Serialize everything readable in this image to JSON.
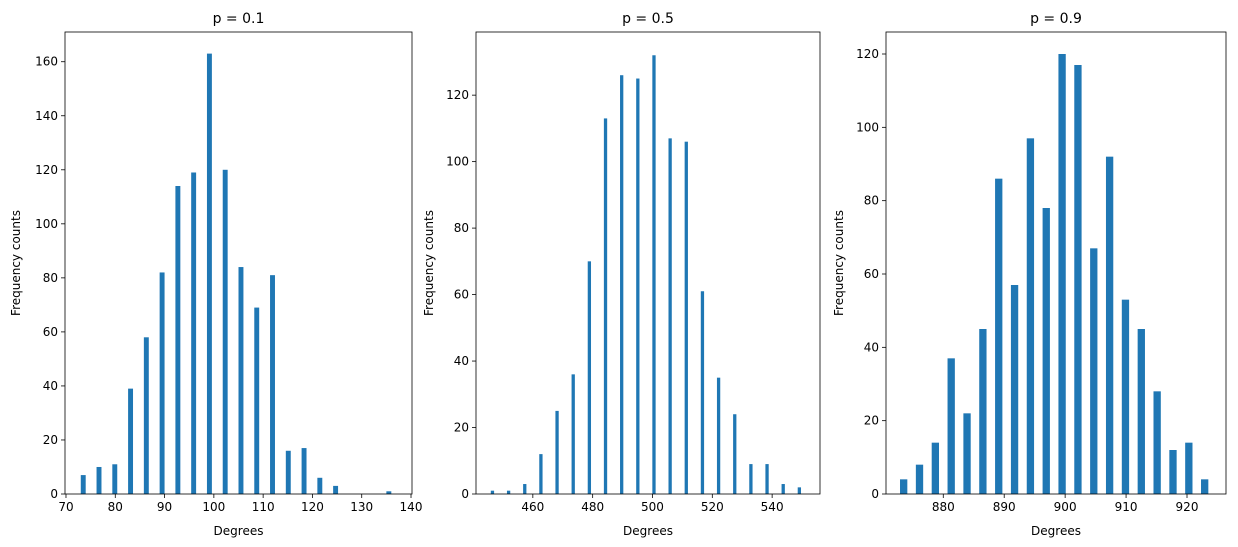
{
  "chart_data": [
    {
      "type": "bar",
      "title": "p = 0.1",
      "xlabel": "Degrees",
      "ylabel": "Frequency counts",
      "color": "#1f77b4",
      "bar_width": 1.0,
      "x": [
        73.5,
        76.7,
        79.9,
        83.1,
        86.3,
        89.5,
        92.7,
        95.9,
        99.1,
        102.3,
        105.5,
        108.7,
        111.9,
        115.1,
        118.3,
        121.5,
        124.7,
        135.5
      ],
      "values": [
        7,
        10,
        11,
        39,
        58,
        82,
        114,
        119,
        163,
        120,
        84,
        69,
        81,
        16,
        17,
        6,
        3,
        1
      ],
      "xlim": [
        69.8,
        140.2
      ],
      "ylim": [
        0,
        171
      ],
      "xticks": [
        70,
        80,
        90,
        100,
        110,
        120,
        130,
        140
      ],
      "yticks": [
        0,
        20,
        40,
        60,
        80,
        100,
        120,
        140,
        160
      ]
    },
    {
      "type": "bar",
      "title": "p = 0.5",
      "xlabel": "Degrees",
      "ylabel": "Frequency counts",
      "color": "#1f77b4",
      "bar_width": 1.1,
      "x": [
        446.5,
        451.9,
        457.3,
        462.7,
        468.1,
        473.5,
        478.9,
        484.3,
        489.7,
        495.1,
        500.5,
        505.9,
        511.3,
        516.7,
        522.1,
        527.5,
        532.9,
        538.3,
        543.7,
        549.1
      ],
      "values": [
        1,
        1,
        3,
        12,
        25,
        36,
        70,
        113,
        126,
        125,
        132,
        107,
        106,
        61,
        35,
        24,
        9,
        9,
        3,
        2
      ],
      "xlim": [
        441,
        556
      ],
      "ylim": [
        0,
        139
      ],
      "xticks": [
        460,
        480,
        500,
        520,
        540
      ],
      "yticks": [
        0,
        20,
        40,
        60,
        80,
        100,
        120
      ]
    },
    {
      "type": "bar",
      "title": "p = 0.9",
      "xlabel": "Degrees",
      "ylabel": "Frequency counts",
      "color": "#1f77b4",
      "bar_width": 1.2,
      "x": [
        873.5,
        876.1,
        878.7,
        881.3,
        883.9,
        886.5,
        889.1,
        891.7,
        894.3,
        896.9,
        899.5,
        902.1,
        904.7,
        907.3,
        909.9,
        912.5,
        915.1,
        917.7,
        920.3,
        922.9
      ],
      "values": [
        4,
        8,
        14,
        37,
        22,
        45,
        86,
        57,
        97,
        78,
        120,
        117,
        67,
        92,
        53,
        45,
        28,
        12,
        14,
        4
      ],
      "xlim": [
        870.6,
        926.4
      ],
      "ylim": [
        0,
        126
      ],
      "xticks": [
        880,
        890,
        900,
        910,
        920
      ],
      "yticks": [
        0,
        20,
        40,
        60,
        80,
        100,
        120
      ]
    }
  ]
}
